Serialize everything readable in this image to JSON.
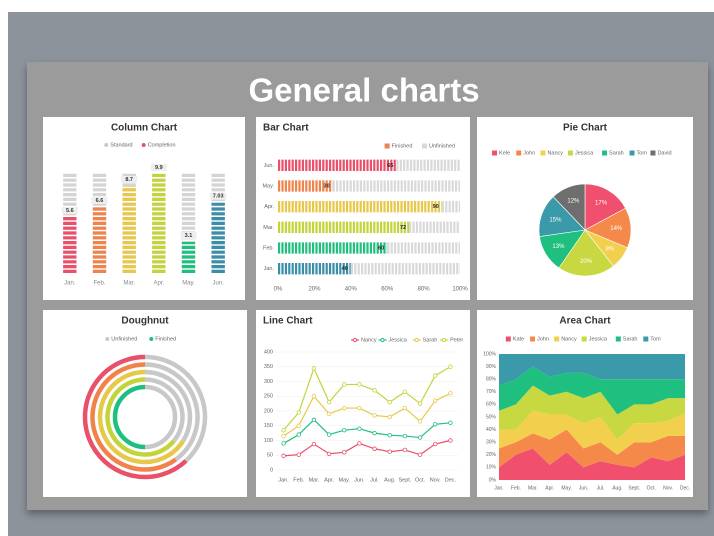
{
  "title": "General charts",
  "chart_data": [
    {
      "type": "column",
      "title": "Column Chart",
      "categories": [
        "Jan.",
        "Feb.",
        "Mar.",
        "Apr.",
        "May.",
        "Jun."
      ],
      "series": [
        {
          "name": "Standard",
          "color": "#d4d4d4",
          "values": [
            10,
            10,
            10,
            10,
            10,
            10
          ]
        },
        {
          "name": "Completion",
          "color": "#e9506a",
          "values": [
            5.6,
            6.6,
            8.7,
            9.9,
            3.1,
            7.03
          ]
        }
      ],
      "colors": [
        "#e9506a",
        "#f0834c",
        "#e8c84a",
        "#c3d33a",
        "#1fbf7f",
        "#3a8ea8"
      ],
      "ylim": [
        0,
        10
      ]
    },
    {
      "type": "bar",
      "title": "Bar Chart",
      "categories": [
        "Jun.",
        "May.",
        "Apr.",
        "Mar.",
        "Feb.",
        "Jan."
      ],
      "series": [
        {
          "name": "Finished",
          "color": "#f0834c",
          "values": [
            65,
            30,
            90,
            72,
            60,
            40
          ]
        },
        {
          "name": "Unfinished",
          "color": "#d9d9d9",
          "values": [
            35,
            70,
            10,
            28,
            40,
            60
          ]
        }
      ],
      "colors": [
        "#e9506a",
        "#f0834c",
        "#e8c84a",
        "#c3d33a",
        "#1fbf7f",
        "#3a8ea8"
      ],
      "xlim": [
        0,
        100
      ],
      "xticks": [
        {
          "value": 0,
          "label": "0%"
        },
        {
          "value": 20,
          "label": "20%"
        },
        {
          "value": 40,
          "label": "40%"
        },
        {
          "value": 60,
          "label": "60%"
        },
        {
          "value": 80,
          "label": "80%"
        },
        {
          "value": 100,
          "label": "100%"
        }
      ]
    },
    {
      "type": "pie",
      "title": "Pie Chart",
      "categories": [
        "Kele",
        "John",
        "Nancy",
        "Jessica",
        "Sarah",
        "Tom",
        "David"
      ],
      "values": [
        17,
        14,
        8,
        20,
        13,
        15,
        12
      ],
      "value_labels": [
        "17%",
        "14%",
        "8%",
        "20%",
        "13%",
        "15%",
        "12%"
      ],
      "colors": [
        "#f0506e",
        "#f5894a",
        "#f2d04e",
        "#c8d840",
        "#1fbf7f",
        "#3a9aaa",
        "#6e6e6e"
      ]
    },
    {
      "type": "doughnut",
      "title": "Doughnut",
      "series": [
        {
          "name": "Unfinished",
          "color": "#c8c8c8",
          "values": [
            38,
            40,
            34,
            36,
            50
          ]
        },
        {
          "name": "Finished",
          "color": "#1fbf7f",
          "values": [
            62,
            60,
            66,
            64,
            50
          ]
        }
      ],
      "ring_colors": [
        "#e9506a",
        "#f0834c",
        "#e8c84a",
        "#c3d33a",
        "#1fbf7f"
      ]
    },
    {
      "type": "line",
      "title": "Line Chart",
      "categories": [
        "Jan.",
        "Feb.",
        "Mar.",
        "Apr.",
        "May.",
        "Jun.",
        "Jul.",
        "Aug.",
        "Sept.",
        "Oct.",
        "Nov.",
        "Dec."
      ],
      "series": [
        {
          "name": "Nancy",
          "color": "#e9506a",
          "values": [
            48,
            52,
            88,
            55,
            60,
            90,
            72,
            62,
            68,
            52,
            88,
            100
          ]
        },
        {
          "name": "Jessica",
          "color": "#1fbf7f",
          "values": [
            90,
            120,
            170,
            120,
            135,
            140,
            125,
            118,
            115,
            110,
            155,
            160
          ]
        },
        {
          "name": "Sarah",
          "color": "#e8c84a",
          "values": [
            115,
            150,
            250,
            190,
            210,
            210,
            185,
            180,
            210,
            165,
            235,
            260
          ]
        },
        {
          "name": "Peter",
          "color": "#c3d33a",
          "values": [
            135,
            195,
            345,
            230,
            290,
            290,
            270,
            230,
            265,
            225,
            320,
            350
          ]
        }
      ],
      "ylim": [
        0,
        400
      ],
      "yticks": [
        0,
        50,
        100,
        150,
        200,
        250,
        300,
        350,
        400
      ],
      "grid": true
    },
    {
      "type": "area",
      "title": "Area Chart",
      "categories": [
        "Jan.",
        "Feb.",
        "Mar.",
        "Apr.",
        "May.",
        "Jun.",
        "Jul.",
        "Aug.",
        "Sept.",
        "Oct.",
        "Nov.",
        "Dec."
      ],
      "series": [
        {
          "name": "Kate",
          "color": "#f0506e",
          "values": [
            10,
            20,
            25,
            12,
            22,
            10,
            15,
            12,
            10,
            18,
            15,
            20
          ]
        },
        {
          "name": "John",
          "color": "#f5894a",
          "values": [
            15,
            10,
            12,
            20,
            18,
            15,
            15,
            8,
            20,
            12,
            20,
            15
          ]
        },
        {
          "name": "Nancy",
          "color": "#f2d04e",
          "values": [
            15,
            10,
            18,
            20,
            12,
            20,
            20,
            12,
            15,
            15,
            12,
            18
          ]
        },
        {
          "name": "Jessica",
          "color": "#c8d840",
          "values": [
            15,
            20,
            20,
            15,
            18,
            20,
            20,
            20,
            15,
            15,
            18,
            12
          ]
        },
        {
          "name": "Sarah",
          "color": "#1fbf7f",
          "values": [
            20,
            20,
            15,
            15,
            15,
            20,
            10,
            28,
            20,
            20,
            15,
            15
          ]
        },
        {
          "name": "Tom",
          "color": "#3a9aaa",
          "values": [
            25,
            20,
            10,
            18,
            15,
            15,
            20,
            20,
            20,
            20,
            20,
            20
          ]
        }
      ],
      "ylim": [
        0,
        100
      ],
      "yticks": [
        {
          "value": 0,
          "label": "0%"
        },
        {
          "value": 10,
          "label": "10%"
        },
        {
          "value": 20,
          "label": "20%"
        },
        {
          "value": 30,
          "label": "30%"
        },
        {
          "value": 40,
          "label": "40%"
        },
        {
          "value": 50,
          "label": "50%"
        },
        {
          "value": 60,
          "label": "60%"
        },
        {
          "value": 70,
          "label": "70%"
        },
        {
          "value": 80,
          "label": "80%"
        },
        {
          "value": 90,
          "label": "90%"
        },
        {
          "value": 100,
          "label": "100%"
        }
      ]
    }
  ]
}
